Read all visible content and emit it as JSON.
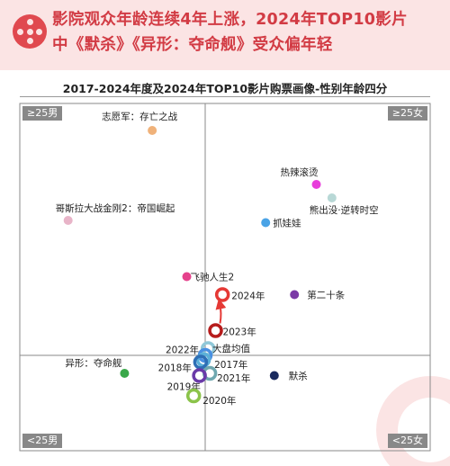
{
  "header": {
    "lines": [
      "影院观众年龄连续4年上涨，2024年TOP10影片",
      "中《默杀》《异形：夺命舰》受众偏年轻"
    ],
    "accent_color": "#d23b44",
    "logo_icon": "film-reel-icon"
  },
  "chart_data": {
    "type": "scatter",
    "title": "2017-2024年度及2024年TOP10影片购票画像-性别年龄四分",
    "xlabel": "",
    "ylabel": "",
    "x_axis": {
      "left_label": "男",
      "right_label": "女"
    },
    "y_axis": {
      "top_label": "≥25",
      "bottom_label": "<25"
    },
    "quadrant_labels": {
      "top_left": "≥25男",
      "top_right": "≥25女",
      "bottom_left": "<25男",
      "bottom_right": "<25女"
    },
    "grid": false,
    "legend": "none",
    "points": [
      {
        "label": "志愿军：存亡之战",
        "x": -0.92,
        "y": 1.0,
        "color": "#f0b27a",
        "style": "dot"
      },
      {
        "label": "热辣滚烫",
        "x": 1.93,
        "y": 0.76,
        "color": "#e83edb",
        "style": "dot"
      },
      {
        "label": "熊出没·逆转时空",
        "x": 2.2,
        "y": 0.7,
        "color": "#b8d8d6",
        "style": "dot"
      },
      {
        "label": "哥斯拉大战金刚2：帝国崛起",
        "x": -2.38,
        "y": 0.6,
        "color": "#e8b4c8",
        "style": "dot"
      },
      {
        "label": "抓娃娃",
        "x": 1.05,
        "y": 0.59,
        "color": "#4aa3e6",
        "style": "dot"
      },
      {
        "label": "飞驰人生2",
        "x": -0.32,
        "y": 0.35,
        "color": "#e5428c",
        "style": "dot"
      },
      {
        "label": "2024年",
        "x": 0.3,
        "y": 0.27,
        "color": "#e53935",
        "style": "ring"
      },
      {
        "label": "第二十条",
        "x": 1.55,
        "y": 0.27,
        "color": "#7b3aa6",
        "style": "dot"
      },
      {
        "label": "2023年",
        "x": 0.18,
        "y": 0.11,
        "color": "#b71c1c",
        "style": "ring"
      },
      {
        "label": "2022年",
        "x": 0.05,
        "y": 0.03,
        "color": "#90c8d8",
        "style": "ring"
      },
      {
        "label": "大盘均值",
        "x": 0.0,
        "y": 0.0,
        "color": "#4a90e2",
        "style": "ring"
      },
      {
        "label": "2017年",
        "x": -0.03,
        "y": -0.02,
        "color": "#5bb0d9",
        "style": "ring"
      },
      {
        "label": "2018年",
        "x": -0.08,
        "y": -0.03,
        "color": "#2e6fb5",
        "style": "ring"
      },
      {
        "label": "异形：夺命舰",
        "x": -1.4,
        "y": -0.08,
        "color": "#3aa84a",
        "style": "dot"
      },
      {
        "label": "2021年",
        "x": 0.08,
        "y": -0.08,
        "color": "#6fa8b0",
        "style": "ring"
      },
      {
        "label": "默杀",
        "x": 1.2,
        "y": -0.09,
        "color": "#1a2a5e",
        "style": "dot"
      },
      {
        "label": "2019年",
        "x": -0.1,
        "y": -0.09,
        "color": "#6a3aa8",
        "style": "ring"
      },
      {
        "label": "2020年",
        "x": -0.2,
        "y": -0.18,
        "color": "#8bc34a",
        "style": "ring"
      }
    ],
    "annotations": [
      {
        "type": "arrow",
        "from": "2023年",
        "to": "2024年",
        "color": "#e53935"
      }
    ]
  }
}
